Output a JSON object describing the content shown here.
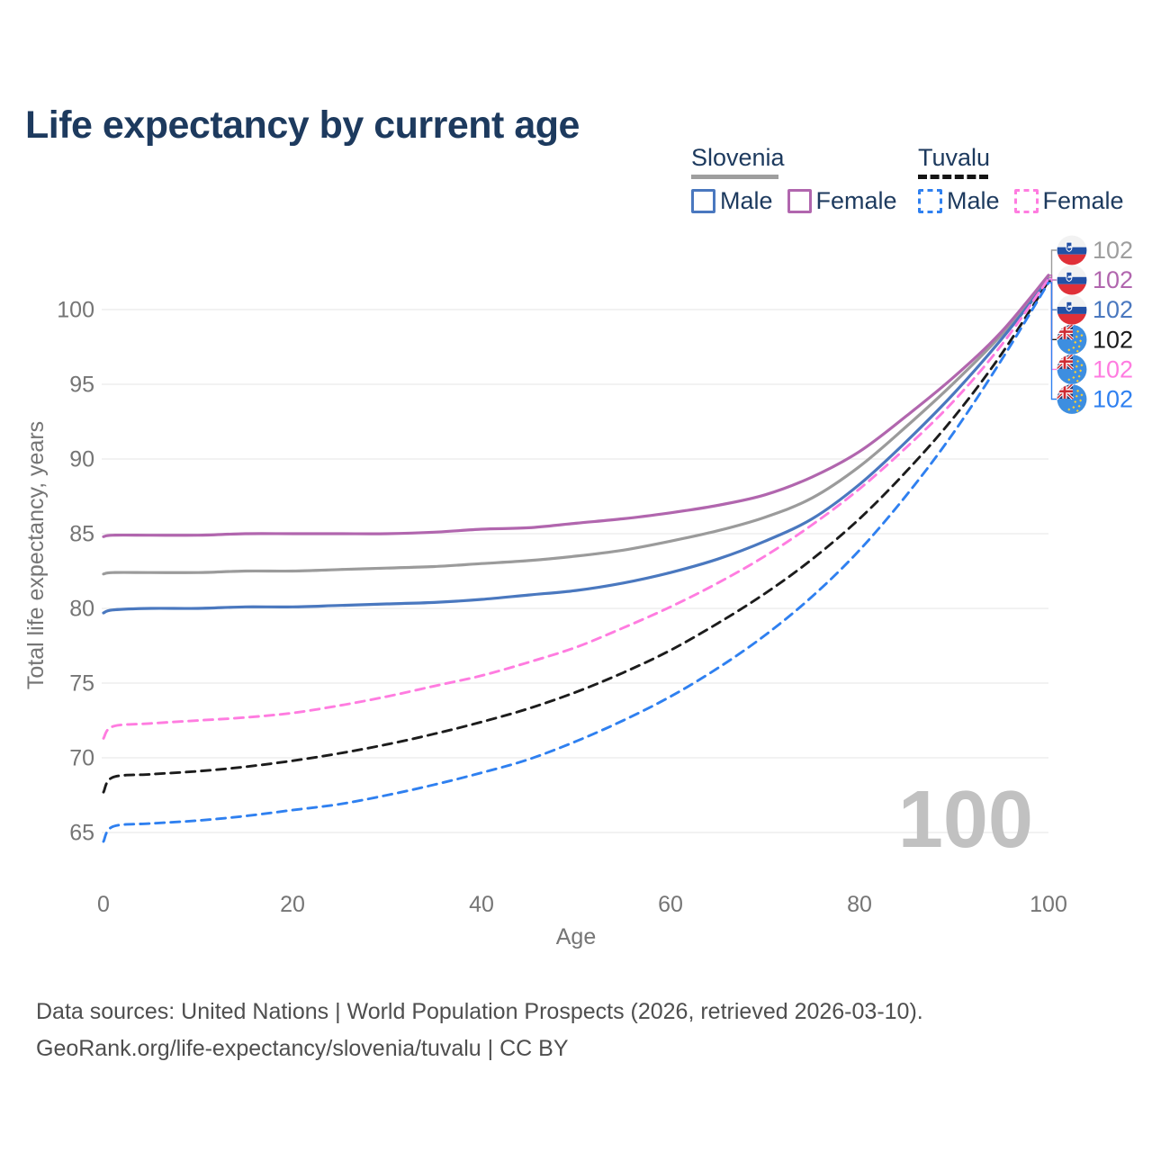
{
  "title": "Life expectancy by current age",
  "legend": {
    "groups": [
      {
        "country": "Slovenia",
        "line_style": "solid",
        "underline_color": "#9e9e9e",
        "items": [
          {
            "label": "Male",
            "color": "#4a78bf"
          },
          {
            "label": "Female",
            "color": "#b166ae"
          }
        ]
      },
      {
        "country": "Tuvalu",
        "line_style": "dashed",
        "underline_color": "#141414",
        "items": [
          {
            "label": "Male",
            "color": "#2f80f0"
          },
          {
            "label": "Female",
            "color": "#ff7ce0"
          }
        ]
      }
    ]
  },
  "chart_data": {
    "type": "line",
    "title": "Life expectancy by current age",
    "xlabel": "Age",
    "ylabel": "Total life expectancy, years",
    "x_ticks": [
      0,
      20,
      40,
      60,
      80,
      100
    ],
    "y_ticks": [
      65,
      70,
      75,
      80,
      85,
      90,
      95,
      100
    ],
    "xlim": [
      0,
      100
    ],
    "ylim": [
      63,
      103
    ],
    "grid": "horizontal-only",
    "legend_position": "top-right",
    "current_age_watermark": "100",
    "x": [
      0,
      1,
      5,
      10,
      15,
      20,
      25,
      30,
      35,
      40,
      45,
      50,
      55,
      60,
      65,
      70,
      75,
      80,
      85,
      90,
      95,
      100
    ],
    "series": [
      {
        "name": "Slovenia — both sexes",
        "country": "Slovenia",
        "flag": "slovenia",
        "color": "#9b9b9b",
        "dashed": false,
        "end_label": "102",
        "label_color": "#9e9e9e",
        "values": [
          82.3,
          82.4,
          82.4,
          82.4,
          82.5,
          82.5,
          82.6,
          82.7,
          82.8,
          83.0,
          83.2,
          83.5,
          83.9,
          84.5,
          85.2,
          86.1,
          87.4,
          89.5,
          92.2,
          95.1,
          98.3,
          102.15
        ]
      },
      {
        "name": "Slovenia — Female",
        "country": "Slovenia",
        "flag": "slovenia",
        "color": "#b166ae",
        "dashed": false,
        "end_label": "102",
        "label_color": "#b166ae",
        "values": [
          84.8,
          84.9,
          84.9,
          84.9,
          85.0,
          85.0,
          85.0,
          85.0,
          85.1,
          85.3,
          85.4,
          85.7,
          86.0,
          86.4,
          86.9,
          87.6,
          88.8,
          90.5,
          92.9,
          95.5,
          98.5,
          102.3
        ]
      },
      {
        "name": "Slovenia — Male",
        "country": "Slovenia",
        "flag": "slovenia",
        "color": "#4a78bf",
        "dashed": false,
        "end_label": "102",
        "label_color": "#4a78bf",
        "values": [
          79.7,
          79.9,
          80.0,
          80.0,
          80.1,
          80.1,
          80.2,
          80.3,
          80.4,
          80.6,
          80.9,
          81.2,
          81.7,
          82.4,
          83.3,
          84.5,
          86.0,
          88.3,
          91.2,
          94.4,
          98.0,
          102.0
        ]
      },
      {
        "name": "Tuvalu — both sexes",
        "country": "Tuvalu",
        "flag": "tuvalu",
        "color": "#1c1c1c",
        "dashed": true,
        "end_label": "102",
        "label_color": "#1a1a1a",
        "values": [
          67.7,
          68.7,
          68.9,
          69.1,
          69.4,
          69.8,
          70.3,
          70.9,
          71.6,
          72.4,
          73.3,
          74.4,
          75.7,
          77.2,
          79.0,
          81.0,
          83.3,
          86.0,
          89.2,
          92.8,
          97.0,
          101.9
        ]
      },
      {
        "name": "Tuvalu — Female",
        "country": "Tuvalu",
        "flag": "tuvalu",
        "color": "#ff7ce0",
        "dashed": true,
        "end_label": "102",
        "label_color": "#ff7ce0",
        "values": [
          71.3,
          72.1,
          72.3,
          72.5,
          72.7,
          73.0,
          73.5,
          74.1,
          74.8,
          75.5,
          76.4,
          77.4,
          78.7,
          80.1,
          81.7,
          83.5,
          85.6,
          88.0,
          90.8,
          93.9,
          97.6,
          102.05
        ]
      },
      {
        "name": "Tuvalu — Male",
        "country": "Tuvalu",
        "flag": "tuvalu",
        "color": "#2f80f0",
        "dashed": true,
        "end_label": "102",
        "label_color": "#2f80f0",
        "values": [
          64.4,
          65.4,
          65.6,
          65.8,
          66.1,
          66.5,
          66.9,
          67.5,
          68.2,
          69.0,
          69.9,
          71.1,
          72.5,
          74.1,
          76.0,
          78.2,
          80.8,
          83.9,
          87.6,
          91.8,
          96.6,
          101.8
        ]
      }
    ]
  },
  "footer": {
    "line1": "Data sources: United Nations | World Population Prospects (2026, retrieved 2026-03-10).",
    "line2": "GeoRank.org/life-expectancy/slovenia/tuvalu | CC BY"
  }
}
